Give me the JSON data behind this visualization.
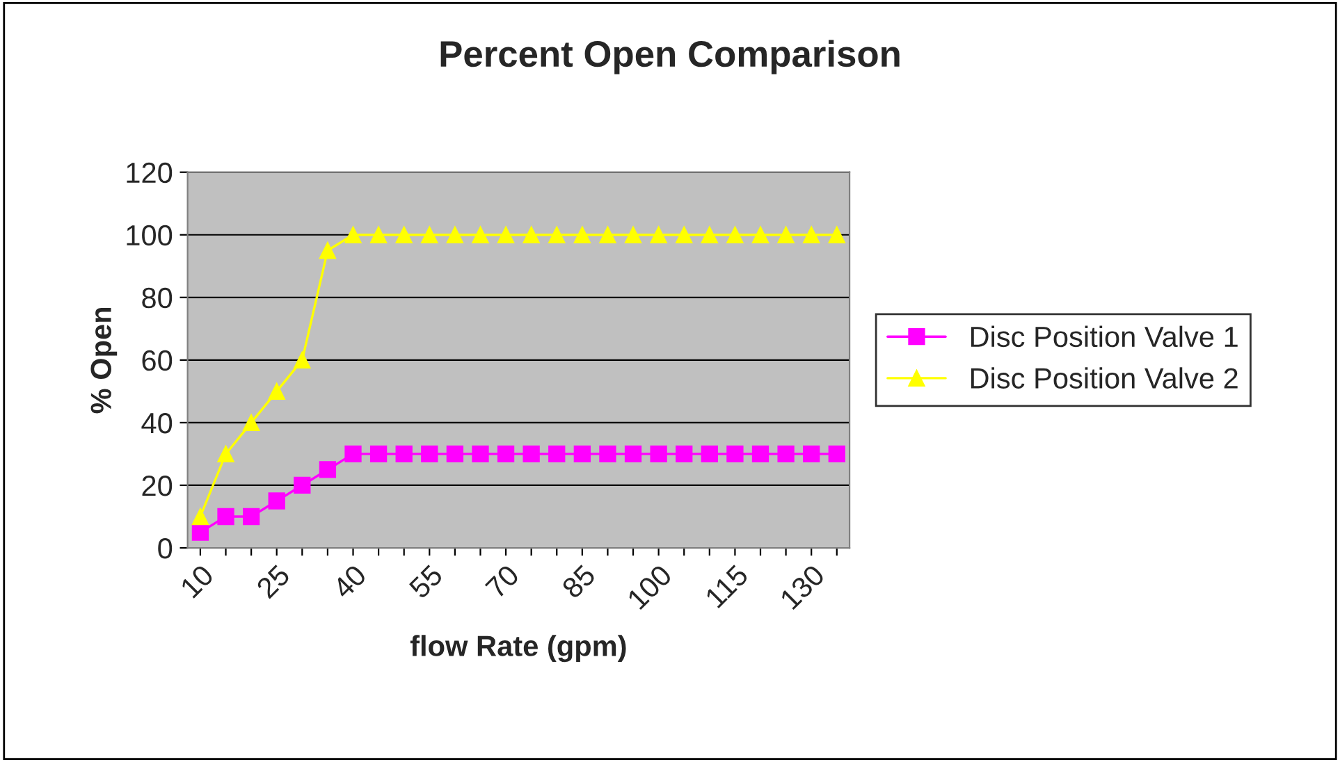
{
  "chart_data": {
    "type": "line",
    "title": "Percent Open Comparison",
    "xlabel": "flow Rate (gpm)",
    "ylabel": "% Open",
    "categories": [
      "10",
      null,
      null,
      "25",
      null,
      null,
      "40",
      null,
      null,
      "55",
      null,
      null,
      "70",
      null,
      null,
      "85",
      null,
      null,
      "100",
      null,
      null,
      "115",
      null,
      null,
      "130",
      null
    ],
    "series": [
      {
        "name": "Disc Position Valve 1",
        "color": "#ff00ff",
        "marker": "square",
        "values": [
          5,
          10,
          10,
          15,
          20,
          25,
          30,
          30,
          30,
          30,
          30,
          30,
          30,
          30,
          30,
          30,
          30,
          30,
          30,
          30,
          30,
          30,
          30,
          30,
          30,
          30
        ]
      },
      {
        "name": "Disc Position Valve 2",
        "color": "#ffff00",
        "marker": "triangle",
        "values": [
          10,
          30,
          40,
          50,
          60,
          95,
          100,
          100,
          100,
          100,
          100,
          100,
          100,
          100,
          100,
          100,
          100,
          100,
          100,
          100,
          100,
          100,
          100,
          100,
          100,
          100
        ]
      }
    ],
    "ylim": [
      0,
      120
    ],
    "yticks": [
      0,
      20,
      40,
      60,
      80,
      100,
      120
    ],
    "grid": "y",
    "legend": "right",
    "line_style": "solid"
  }
}
